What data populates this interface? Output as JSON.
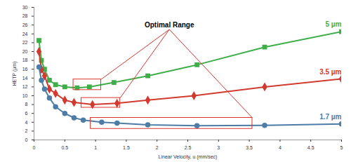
{
  "chart_data": {
    "type": "line",
    "x_label": "Linear Velocity, u (mm/sec)",
    "y_label": "HETP (µm)",
    "xlim": [
      0,
      5
    ],
    "xticks": [
      0,
      0.5,
      1,
      1.5,
      2,
      2.5,
      3,
      3.5,
      4,
      4.5,
      5
    ],
    "ylim": [
      0,
      30
    ],
    "yticks": [
      0,
      2,
      4,
      6,
      8,
      10,
      12,
      14,
      16,
      18,
      20,
      22,
      24,
      26,
      28,
      30
    ],
    "grid": false,
    "series": [
      {
        "name": "5 µm",
        "color": "#3fae49",
        "marker": "square",
        "x": [
          0.08,
          0.12,
          0.17,
          0.25,
          0.35,
          0.5,
          0.7,
          0.9,
          1.3,
          1.85,
          2.65,
          3.75,
          5
        ],
        "values": [
          22.5,
          18,
          16,
          13.5,
          12.5,
          12,
          11.8,
          12,
          13,
          14.5,
          17,
          21,
          24.5
        ],
        "optimal_range": {
          "x": [
            0.64,
            1.09
          ],
          "y": [
            11.3,
            13.7
          ]
        }
      },
      {
        "name": "3.5 µm",
        "color": "#d23a30",
        "marker": "diamond",
        "x": [
          0.08,
          0.12,
          0.17,
          0.25,
          0.35,
          0.5,
          0.65,
          0.95,
          1.35,
          1.85,
          2.6,
          3.75,
          5
        ],
        "values": [
          20,
          16,
          14.5,
          11.5,
          10.5,
          9,
          8.5,
          8,
          8.3,
          9,
          10,
          12,
          13.8
        ],
        "optimal_range": {
          "x": [
            0.77,
            1.4
          ],
          "y": [
            7.3,
            9.5
          ]
        }
      },
      {
        "name": "1.7 µm",
        "color": "#4d7ca6",
        "marker": "circle",
        "x": [
          0.08,
          0.12,
          0.17,
          0.25,
          0.35,
          0.5,
          0.65,
          0.8,
          1.1,
          1.35,
          1.85,
          2.65,
          3.75,
          5
        ],
        "values": [
          16.5,
          13.5,
          11.5,
          9.5,
          7.5,
          6,
          5,
          4.5,
          4,
          3.8,
          3.4,
          3.2,
          3.3,
          3.6
        ],
        "optimal_range": {
          "x": [
            0.92,
            3.55
          ],
          "y": [
            2.5,
            5
          ]
        }
      }
    ],
    "annotations": [
      {
        "text": "Optimal Range",
        "x": 2.2,
        "y": 25
      }
    ]
  }
}
